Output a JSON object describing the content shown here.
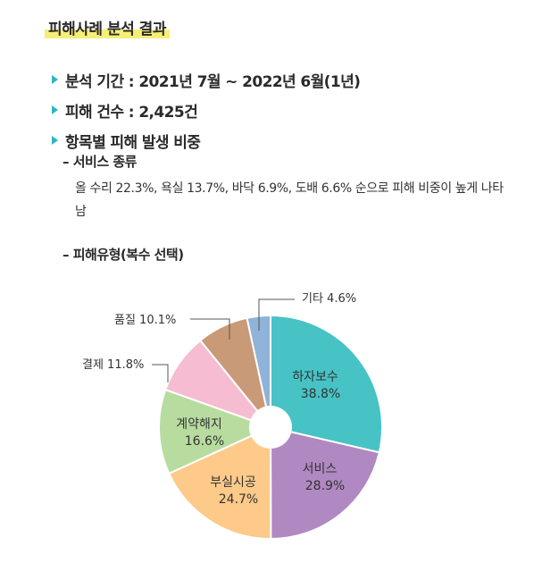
{
  "title": "피해사례 분석 결과",
  "bullets": [
    "분석 기간 : 2021년 7월 ~ 2022년 6월(1년)",
    "피해 건수 : 2,425건",
    "항목별 피해 발생 비중"
  ],
  "service_heading": "– 서비스 종류",
  "service_desc": "올 수리 22.3%, 욕실 13.7%, 바닥 6.9%, 도배 6.6% 순으로 피해 비중이 높게 나타남",
  "type_heading": "– 피해유형(복수 선택)",
  "chart_data": {
    "type": "pie",
    "donut": true,
    "slices": [
      {
        "label": "하자보수",
        "value": 38.8,
        "value_label": "38.8%",
        "color": "#47c3c6",
        "text_color": "#ffffff",
        "position": "inside"
      },
      {
        "label": "서비스",
        "value": 28.9,
        "value_label": "28.9%",
        "color": "#b088c2",
        "text_color": "#ffffff",
        "position": "inside"
      },
      {
        "label": "부실시공",
        "value": 24.7,
        "value_label": "24.7%",
        "color": "#fdca8a",
        "text_color": "#333333",
        "position": "inside"
      },
      {
        "label": "계약해지",
        "value": 16.6,
        "value_label": "16.6%",
        "color": "#b8dca0",
        "text_color": "#333333",
        "position": "inside"
      },
      {
        "label": "결제",
        "value": 11.8,
        "value_label": "11.8%",
        "color": "#f6bcd2",
        "text_color": "#333333",
        "position": "outside"
      },
      {
        "label": "품질",
        "value": 10.1,
        "value_label": "10.1%",
        "color": "#c99a77",
        "text_color": "#333333",
        "position": "outside"
      },
      {
        "label": "기타",
        "value": 4.6,
        "value_label": "4.6%",
        "color": "#8fb3d9",
        "text_color": "#333333",
        "position": "outside"
      }
    ]
  }
}
